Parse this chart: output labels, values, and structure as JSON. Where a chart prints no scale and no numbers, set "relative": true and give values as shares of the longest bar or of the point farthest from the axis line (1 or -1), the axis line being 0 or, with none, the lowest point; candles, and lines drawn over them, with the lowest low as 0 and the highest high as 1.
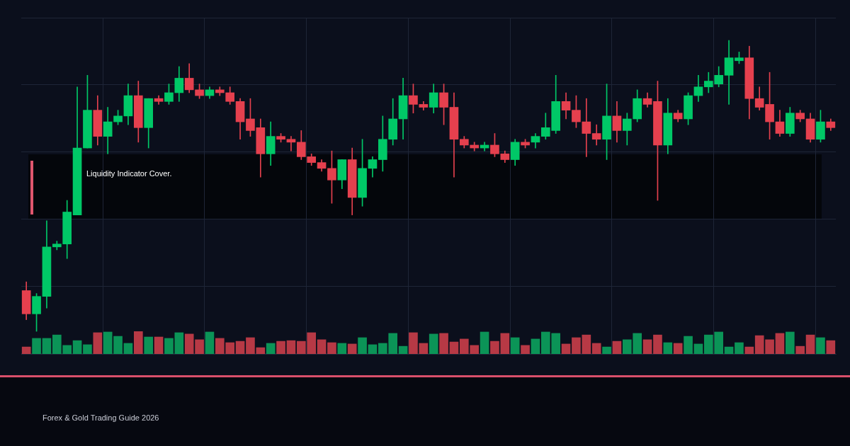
{
  "chart_data": [
    {
      "type": "candlestick",
      "relative": true,
      "grid": true,
      "categories": [
        null,
        null,
        null,
        null,
        null,
        null,
        null,
        null,
        null,
        null,
        null,
        null,
        null,
        null,
        null,
        null,
        null,
        null,
        null,
        null,
        null,
        null,
        null,
        null,
        null,
        null,
        null,
        null,
        null,
        null,
        null,
        null,
        null,
        null,
        null,
        null,
        null,
        null,
        null,
        null,
        null,
        null,
        null,
        null,
        null,
        null,
        null,
        null,
        null,
        null,
        null,
        null,
        null,
        null,
        null,
        null,
        null,
        null,
        null,
        null,
        null,
        null,
        null,
        null,
        null,
        null,
        null,
        null,
        null,
        null,
        null,
        null,
        null,
        null,
        null,
        null,
        null,
        null,
        null,
        null
      ],
      "ohlc": [
        [
          0.14,
          0.17,
          0.04,
          0.06
        ],
        [
          0.06,
          0.13,
          0,
          0.12
        ],
        [
          0.12,
          0.38,
          0.08,
          0.29
        ],
        [
          0.29,
          0.31,
          0.28,
          0.3
        ],
        [
          0.3,
          0.45,
          0.25,
          0.41
        ],
        [
          0.4,
          0.84,
          0.4,
          0.63
        ],
        [
          0.63,
          0.88,
          0.63,
          0.76
        ],
        [
          0.76,
          0.81,
          0.64,
          0.67
        ],
        [
          0.67,
          0.77,
          0.61,
          0.72
        ],
        [
          0.72,
          0.76,
          0.71,
          0.74
        ],
        [
          0.74,
          0.85,
          0.71,
          0.81
        ],
        [
          0.81,
          0.86,
          0.65,
          0.7
        ],
        [
          0.7,
          0.8,
          0.63,
          0.8
        ],
        [
          0.8,
          0.81,
          0.78,
          0.79
        ],
        [
          0.79,
          0.85,
          0.78,
          0.82
        ],
        [
          0.82,
          0.91,
          0.79,
          0.87
        ],
        [
          0.87,
          0.92,
          0.82,
          0.83
        ],
        [
          0.83,
          0.85,
          0.8,
          0.81
        ],
        [
          0.81,
          0.84,
          0.8,
          0.83
        ],
        [
          0.83,
          0.84,
          0.81,
          0.82
        ],
        [
          0.82,
          0.84,
          0.78,
          0.79
        ],
        [
          0.79,
          0.8,
          0.66,
          0.72
        ],
        [
          0.73,
          0.8,
          0.67,
          0.69
        ],
        [
          0.7,
          0.73,
          0.53,
          0.61
        ],
        [
          0.61,
          0.72,
          0.57,
          0.67
        ],
        [
          0.67,
          0.68,
          0.65,
          0.66
        ],
        [
          0.66,
          0.67,
          0.62,
          0.65
        ],
        [
          0.65,
          0.69,
          0.59,
          0.6
        ],
        [
          0.6,
          0.61,
          0.57,
          0.58
        ],
        [
          0.58,
          0.59,
          0.55,
          0.56
        ],
        [
          0.56,
          0.62,
          0.44,
          0.52
        ],
        [
          0.52,
          0.59,
          0.49,
          0.59
        ],
        [
          0.59,
          0.63,
          0.4,
          0.46
        ],
        [
          0.46,
          0.66,
          0.43,
          0.56
        ],
        [
          0.56,
          0.6,
          0.53,
          0.59
        ],
        [
          0.59,
          0.74,
          0.55,
          0.66
        ],
        [
          0.66,
          0.8,
          0.64,
          0.73
        ],
        [
          0.73,
          0.87,
          0.66,
          0.81
        ],
        [
          0.81,
          0.85,
          0.75,
          0.78
        ],
        [
          0.78,
          0.79,
          0.76,
          0.77
        ],
        [
          0.77,
          0.85,
          0.75,
          0.82
        ],
        [
          0.82,
          0.85,
          0.71,
          0.77
        ],
        [
          0.77,
          0.82,
          0.53,
          0.66
        ],
        [
          0.66,
          0.67,
          0.63,
          0.64
        ],
        [
          0.64,
          0.65,
          0.62,
          0.63
        ],
        [
          0.63,
          0.65,
          0.62,
          0.64
        ],
        [
          0.64,
          0.68,
          0.6,
          0.61
        ],
        [
          0.61,
          0.62,
          0.58,
          0.59
        ],
        [
          0.59,
          0.66,
          0.57,
          0.65
        ],
        [
          0.65,
          0.66,
          0.63,
          0.64
        ],
        [
          0.65,
          0.68,
          0.63,
          0.67
        ],
        [
          0.67,
          0.75,
          0.66,
          0.7
        ],
        [
          0.69,
          0.88,
          0.68,
          0.79
        ],
        [
          0.79,
          0.82,
          0.73,
          0.76
        ],
        [
          0.76,
          0.81,
          0.7,
          0.72
        ],
        [
          0.72,
          0.8,
          0.6,
          0.68
        ],
        [
          0.68,
          0.71,
          0.64,
          0.66
        ],
        [
          0.66,
          0.85,
          0.59,
          0.74
        ],
        [
          0.74,
          0.79,
          0.65,
          0.69
        ],
        [
          0.69,
          0.75,
          0.64,
          0.73
        ],
        [
          0.73,
          0.83,
          0.72,
          0.8
        ],
        [
          0.8,
          0.82,
          0.77,
          0.78
        ],
        [
          0.79,
          0.86,
          0.45,
          0.64
        ],
        [
          0.64,
          0.8,
          0.61,
          0.75
        ],
        [
          0.75,
          0.76,
          0.72,
          0.73
        ],
        [
          0.73,
          0.82,
          0.71,
          0.81
        ],
        [
          0.81,
          0.88,
          0.79,
          0.84
        ],
        [
          0.84,
          0.89,
          0.82,
          0.86
        ],
        [
          0.85,
          0.91,
          0.84,
          0.88
        ],
        [
          0.88,
          1,
          0.78,
          0.94
        ],
        [
          0.93,
          0.96,
          0.92,
          0.94
        ],
        [
          0.94,
          0.98,
          0.73,
          0.8
        ],
        [
          0.8,
          0.84,
          0.76,
          0.77
        ],
        [
          0.78,
          0.89,
          0.66,
          0.72
        ],
        [
          0.72,
          0.76,
          0.67,
          0.68
        ],
        [
          0.68,
          0.77,
          0.67,
          0.75
        ],
        [
          0.75,
          0.76,
          0.72,
          0.73
        ],
        [
          0.73,
          0.75,
          0.65,
          0.66
        ],
        [
          0.66,
          0.76,
          0.65,
          0.72
        ],
        [
          0.72,
          0.73,
          0.69,
          0.7
        ]
      ],
      "colors": [
        "#e5404e",
        "#00c867",
        "#00c867",
        "#00c867",
        "#00c867",
        "#00c867",
        "#00c867",
        "#e5404e",
        "#00c867",
        "#00c867",
        "#00c867",
        "#e5404e",
        "#00c867",
        "#e5404e",
        "#00c867",
        "#00c867",
        "#e5404e",
        "#e5404e",
        "#00c867",
        "#e5404e",
        "#e5404e",
        "#e5404e",
        "#e5404e",
        "#e5404e",
        "#00c867",
        "#e5404e",
        "#e5404e",
        "#e5404e",
        "#e5404e",
        "#e5404e",
        "#e5404e",
        "#00c867",
        "#e5404e",
        "#00c867",
        "#00c867",
        "#00c867",
        "#00c867",
        "#00c867",
        "#e5404e",
        "#e5404e",
        "#00c867",
        "#e5404e",
        "#e5404e",
        "#e5404e",
        "#e5404e",
        "#00c867",
        "#e5404e",
        "#e5404e",
        "#00c867",
        "#e5404e",
        "#00c867",
        "#00c867",
        "#00c867",
        "#e5404e",
        "#e5404e",
        "#e5404e",
        "#e5404e",
        "#00c867",
        "#e5404e",
        "#00c867",
        "#00c867",
        "#e5404e",
        "#e5404e",
        "#00c867",
        "#e5404e",
        "#00c867",
        "#00c867",
        "#00c867",
        "#00c867",
        "#00c867",
        "#00c867",
        "#e5404e",
        "#e5404e",
        "#e5404e",
        "#e5404e",
        "#00c867",
        "#e5404e",
        "#e5404e",
        "#00c867",
        "#e5404e"
      ],
      "annotations": [
        "Liquidity Indicator Cover.",
        "Forex & Gold Trading Guide 2026"
      ]
    },
    {
      "type": "bar",
      "relative": true,
      "grid": "x",
      "categories": [
        null,
        null,
        null,
        null,
        null,
        null,
        null,
        null,
        null,
        null,
        null,
        null,
        null,
        null,
        null,
        null,
        null,
        null,
        null,
        null,
        null,
        null,
        null,
        null,
        null,
        null,
        null,
        null,
        null,
        null,
        null,
        null,
        null,
        null,
        null,
        null,
        null,
        null,
        null,
        null,
        null,
        null,
        null,
        null,
        null,
        null,
        null,
        null,
        null,
        null,
        null,
        null,
        null,
        null,
        null,
        null,
        null,
        null,
        null,
        null,
        null,
        null,
        null,
        null,
        null,
        null,
        null,
        null,
        null,
        null,
        null,
        null,
        null,
        null,
        null,
        null,
        null,
        null,
        null,
        null
      ],
      "values": [
        0.31,
        0.69,
        0.69,
        0.84,
        0.38,
        0.59,
        0.41,
        0.94,
        0.97,
        0.78,
        0.47,
        1,
        0.75,
        0.75,
        0.69,
        0.94,
        0.88,
        0.63,
        0.97,
        0.69,
        0.5,
        0.56,
        0.72,
        0.28,
        0.47,
        0.56,
        0.59,
        0.56,
        0.94,
        0.63,
        0.5,
        0.47,
        0.44,
        0.72,
        0.41,
        0.47,
        0.91,
        0.34,
        0.94,
        0.47,
        0.88,
        0.91,
        0.53,
        0.66,
        0.38,
        0.97,
        0.56,
        0.91,
        0.72,
        0.38,
        0.66,
        0.97,
        0.91,
        0.44,
        0.72,
        0.84,
        0.47,
        0.31,
        0.56,
        0.63,
        0.91,
        0.63,
        0.84,
        0.5,
        0.47,
        0.78,
        0.44,
        0.84,
        0.97,
        0.31,
        0.5,
        0.31,
        0.81,
        0.63,
        0.91,
        0.97,
        0.34,
        0.84,
        0.72,
        0.59
      ],
      "colors": [
        "#b73945",
        "#0b9457",
        "#0b9457",
        "#0b9457",
        "#0b9457",
        "#0b9457",
        "#0b9457",
        "#b73945",
        "#0b9457",
        "#0b9457",
        "#0b9457",
        "#b73945",
        "#0b9457",
        "#b73945",
        "#0b9457",
        "#0b9457",
        "#b73945",
        "#b73945",
        "#0b9457",
        "#b73945",
        "#b73945",
        "#b73945",
        "#b73945",
        "#b73945",
        "#0b9457",
        "#b73945",
        "#b73945",
        "#b73945",
        "#b73945",
        "#b73945",
        "#b73945",
        "#0b9457",
        "#b73945",
        "#0b9457",
        "#0b9457",
        "#0b9457",
        "#0b9457",
        "#0b9457",
        "#b73945",
        "#b73945",
        "#0b9457",
        "#b73945",
        "#b73945",
        "#b73945",
        "#b73945",
        "#0b9457",
        "#b73945",
        "#b73945",
        "#0b9457",
        "#b73945",
        "#0b9457",
        "#0b9457",
        "#0b9457",
        "#b73945",
        "#b73945",
        "#b73945",
        "#b73945",
        "#0b9457",
        "#b73945",
        "#0b9457",
        "#0b9457",
        "#b73945",
        "#b73945",
        "#0b9457",
        "#b73945",
        "#0b9457",
        "#0b9457",
        "#0b9457",
        "#0b9457",
        "#0b9457",
        "#0b9457",
        "#b73945",
        "#b73945",
        "#b73945",
        "#b73945",
        "#0b9457",
        "#b73945",
        "#b73945",
        "#0b9457",
        "#b73945"
      ]
    }
  ]
}
